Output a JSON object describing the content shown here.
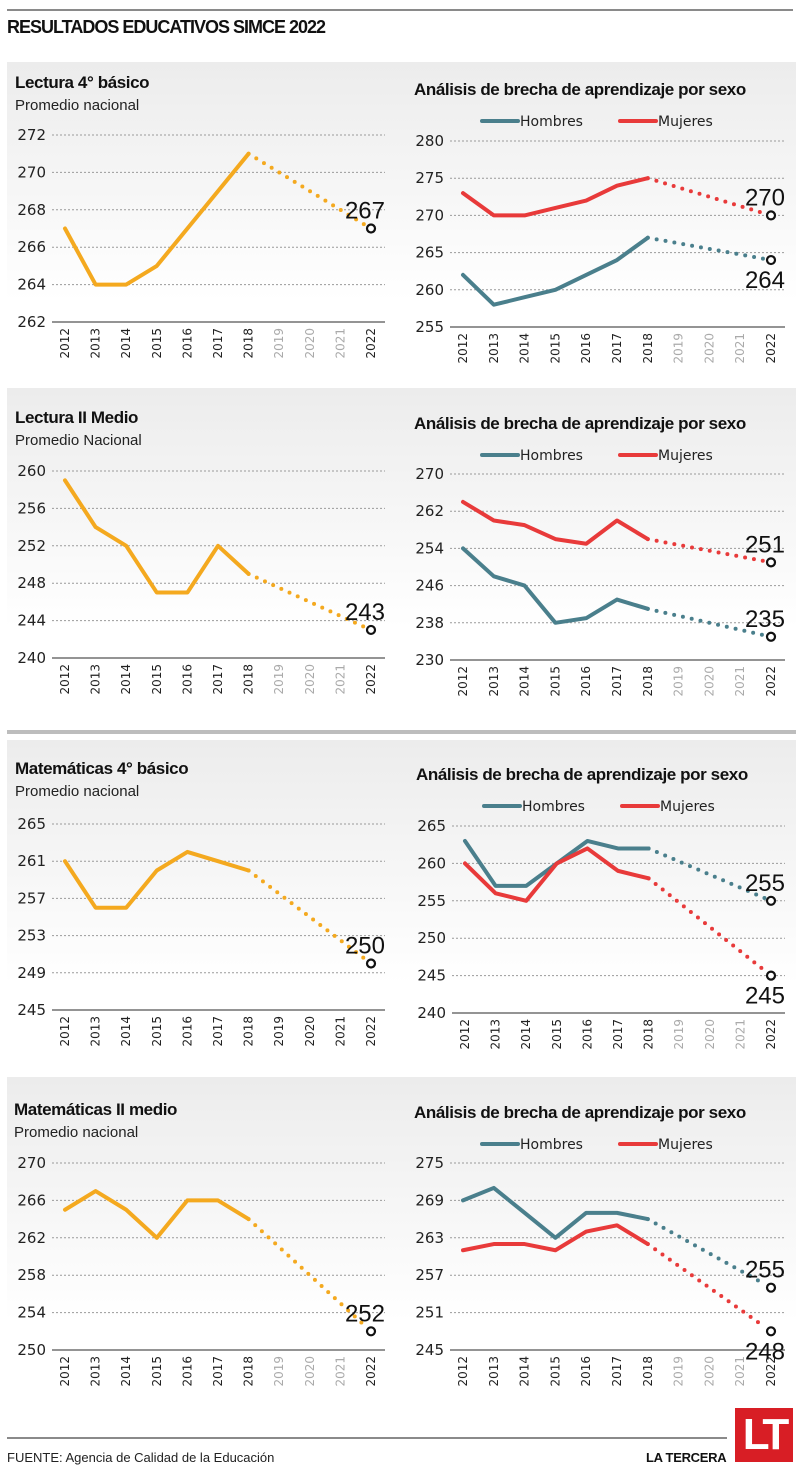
{
  "header": {
    "title": "RESULTADOS EDUCATIVOS SIMCE 2022"
  },
  "colors": {
    "national": "#f4a91f",
    "hombres": "#4a7f8c",
    "mujeres": "#e83a3a",
    "projected_year": "#aaaaaa"
  },
  "legend": {
    "hombres": "Hombres",
    "mujeres": "Mujeres"
  },
  "footer": {
    "source": "FUENTE: Agencia de Calidad de la Educación",
    "brand": "LA TERCERA",
    "logo": "LT"
  },
  "chart_data": [
    {
      "id": "lectura4",
      "type": "line",
      "title": "Lectura 4° básico",
      "subtitle": "Promedio nacional",
      "x": [
        "2012",
        "2013",
        "2014",
        "2015",
        "2016",
        "2017",
        "2018",
        "2019",
        "2020",
        "2021",
        "2022"
      ],
      "projected_years": [
        "2019",
        "2020",
        "2021"
      ],
      "yticks": [
        262,
        264,
        266,
        268,
        270,
        272
      ],
      "ylim": [
        262,
        272
      ],
      "series": [
        {
          "name": "Promedio nacional",
          "color": "#f4a91f",
          "values": [
            267,
            264,
            264,
            265,
            267,
            269,
            271,
            null,
            null,
            null,
            267
          ],
          "end_label": "267",
          "label_pos": "above"
        }
      ]
    },
    {
      "id": "lectura4-sexo",
      "type": "line",
      "title": "Análisis de brecha de aprendizaje por sexo",
      "x": [
        "2012",
        "2013",
        "2014",
        "2015",
        "2016",
        "2017",
        "2018",
        "2019",
        "2020",
        "2021",
        "2022"
      ],
      "projected_years": [
        "2019",
        "2020",
        "2021"
      ],
      "yticks": [
        255,
        260,
        265,
        270,
        275,
        280
      ],
      "ylim": [
        255,
        280
      ],
      "legend": "top",
      "series": [
        {
          "name": "Hombres",
          "color": "#4a7f8c",
          "values": [
            262,
            258,
            259,
            260,
            262,
            264,
            267,
            null,
            null,
            null,
            264
          ],
          "end_label": "264",
          "label_pos": "below"
        },
        {
          "name": "Mujeres",
          "color": "#e83a3a",
          "values": [
            273,
            270,
            270,
            271,
            272,
            274,
            275,
            null,
            null,
            null,
            270
          ],
          "end_label": "270",
          "label_pos": "above"
        }
      ]
    },
    {
      "id": "lectura2m",
      "type": "line",
      "title": "Lectura II Medio",
      "subtitle": "Promedio Nacional",
      "x": [
        "2012",
        "2013",
        "2014",
        "2015",
        "2016",
        "2017",
        "2018",
        "2019",
        "2020",
        "2021",
        "2022"
      ],
      "projected_years": [
        "2019",
        "2020",
        "2021"
      ],
      "yticks": [
        240,
        244,
        248,
        252,
        256,
        260
      ],
      "ylim": [
        240,
        260
      ],
      "series": [
        {
          "name": "Promedio nacional",
          "color": "#f4a91f",
          "values": [
            259,
            254,
            252,
            247,
            247,
            252,
            249,
            null,
            null,
            null,
            243
          ],
          "end_label": "243",
          "label_pos": "above"
        }
      ]
    },
    {
      "id": "lectura2m-sexo",
      "type": "line",
      "title": "Análisis de brecha de aprendizaje por sexo",
      "x": [
        "2012",
        "2013",
        "2014",
        "2015",
        "2016",
        "2017",
        "2018",
        "2019",
        "2020",
        "2021",
        "2022"
      ],
      "projected_years": [
        "2019",
        "2020",
        "2021"
      ],
      "yticks": [
        230,
        238,
        246,
        254,
        262,
        270
      ],
      "ylim": [
        230,
        270
      ],
      "legend": "top",
      "series": [
        {
          "name": "Hombres",
          "color": "#4a7f8c",
          "values": [
            254,
            248,
            246,
            238,
            239,
            243,
            241,
            null,
            null,
            null,
            235
          ],
          "end_label": "235",
          "label_pos": "above"
        },
        {
          "name": "Mujeres",
          "color": "#e83a3a",
          "values": [
            264,
            260,
            259,
            256,
            255,
            260,
            256,
            null,
            null,
            null,
            251
          ],
          "end_label": "251",
          "label_pos": "above"
        }
      ]
    },
    {
      "id": "mate4",
      "type": "line",
      "title": "Matemáticas 4° básico",
      "subtitle": "Promedio nacional",
      "x": [
        "2012",
        "2013",
        "2014",
        "2015",
        "2016",
        "2017",
        "2018",
        "2019",
        "2020",
        "2021",
        "2022"
      ],
      "projected_years": [],
      "yticks": [
        245,
        249,
        253,
        257,
        261,
        265
      ],
      "ylim": [
        245,
        265
      ],
      "series": [
        {
          "name": "Promedio nacional",
          "color": "#f4a91f",
          "values": [
            261,
            256,
            256,
            260,
            262,
            261,
            260,
            null,
            null,
            null,
            250
          ],
          "end_label": "250",
          "label_pos": "above"
        }
      ]
    },
    {
      "id": "mate4-sexo",
      "type": "line",
      "title": "Análisis de brecha de aprendizaje por sexo",
      "x": [
        "2012",
        "2013",
        "2014",
        "2015",
        "2016",
        "2017",
        "2018",
        "2019",
        "2020",
        "2021",
        "2022"
      ],
      "projected_years": [
        "2019",
        "2020",
        "2021"
      ],
      "yticks": [
        240,
        245,
        250,
        255,
        260,
        265
      ],
      "ylim": [
        240,
        265
      ],
      "legend": "top",
      "series": [
        {
          "name": "Hombres",
          "color": "#4a7f8c",
          "values": [
            263,
            257,
            257,
            260,
            263,
            262,
            262,
            null,
            null,
            null,
            255
          ],
          "end_label": "255",
          "label_pos": "above"
        },
        {
          "name": "Mujeres",
          "color": "#e83a3a",
          "values": [
            260,
            256,
            255,
            260,
            262,
            259,
            258,
            null,
            null,
            null,
            245
          ],
          "end_label": "245",
          "label_pos": "below"
        }
      ]
    },
    {
      "id": "mate2m",
      "type": "line",
      "title": "Matemáticas II medio",
      "subtitle": "Promedio nacional",
      "x": [
        "2012",
        "2013",
        "2014",
        "2015",
        "2016",
        "2017",
        "2018",
        "2019",
        "2020",
        "2021",
        "2022"
      ],
      "projected_years": [
        "2019",
        "2020",
        "2021"
      ],
      "yticks": [
        250,
        254,
        258,
        262,
        266,
        270
      ],
      "ylim": [
        250,
        270
      ],
      "series": [
        {
          "name": "Promedio nacional",
          "color": "#f4a91f",
          "values": [
            265,
            267,
            265,
            262,
            266,
            266,
            264,
            null,
            null,
            null,
            252
          ],
          "end_label": "252",
          "label_pos": "above"
        }
      ]
    },
    {
      "id": "mate2m-sexo",
      "type": "line",
      "title": "Análisis de brecha de aprendizaje por sexo",
      "x": [
        "2012",
        "2013",
        "2014",
        "2015",
        "2016",
        "2017",
        "2018",
        "2019",
        "2020",
        "2021",
        "2022"
      ],
      "projected_years": [
        "2019",
        "2020",
        "2021"
      ],
      "yticks": [
        245,
        251,
        257,
        263,
        269,
        275
      ],
      "ylim": [
        245,
        275
      ],
      "legend": "top",
      "series": [
        {
          "name": "Hombres",
          "color": "#4a7f8c",
          "values": [
            269,
            271,
            267,
            263,
            267,
            267,
            266,
            null,
            null,
            null,
            255
          ],
          "end_label": "255",
          "label_pos": "above"
        },
        {
          "name": "Mujeres",
          "color": "#e83a3a",
          "values": [
            261,
            262,
            262,
            261,
            264,
            265,
            262,
            null,
            null,
            null,
            248
          ],
          "end_label": "248",
          "label_pos": "below"
        }
      ]
    }
  ]
}
